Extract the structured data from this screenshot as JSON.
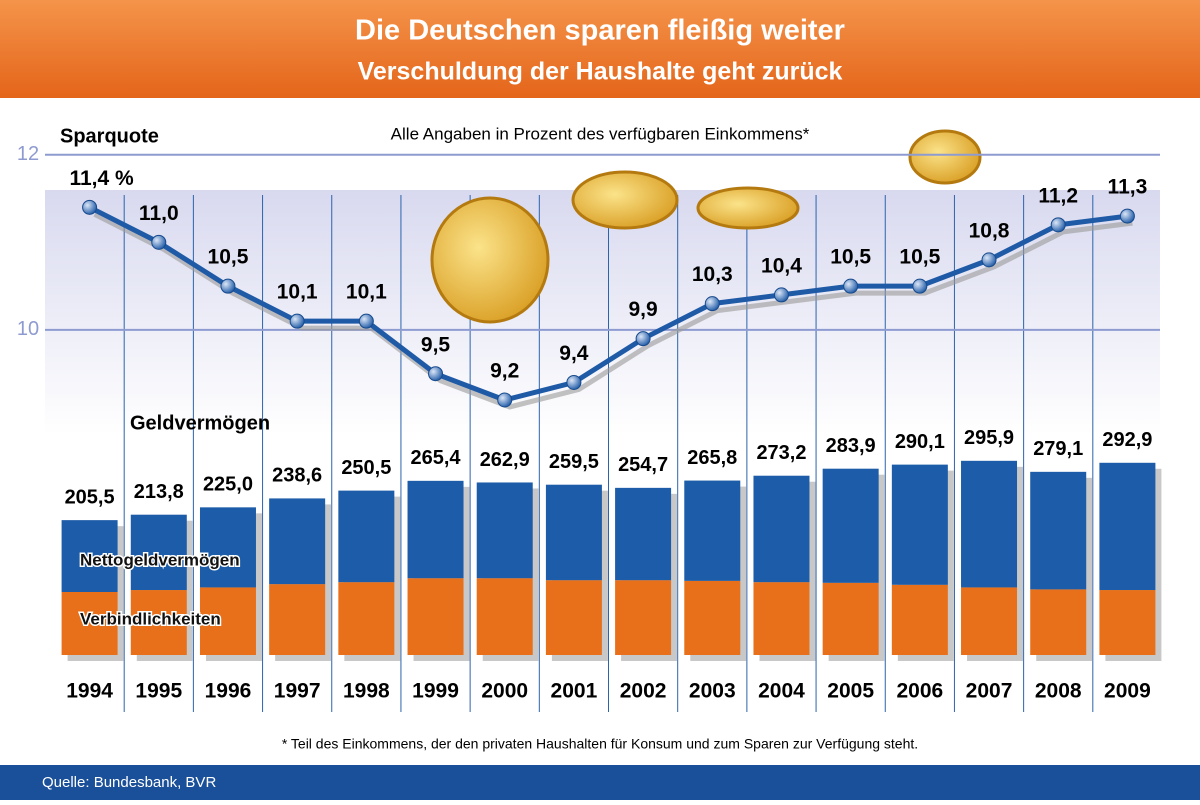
{
  "chart_data": [
    {
      "type": "line",
      "title": "Die Deutschen sparen fleißig weiter",
      "subtitle": "Verschuldung der Haushalte geht zurück",
      "note": "Alle Angaben in Prozent des verfügbaren Einkommens*",
      "ylabel": "Sparquote",
      "categories": [
        "1994",
        "1995",
        "1996",
        "1997",
        "1998",
        "1999",
        "2000",
        "2001",
        "2002",
        "2003",
        "2004",
        "2005",
        "2006",
        "2007",
        "2008",
        "2009"
      ],
      "values": [
        11.4,
        11.0,
        10.5,
        10.1,
        10.1,
        9.5,
        9.2,
        9.4,
        9.9,
        10.3,
        10.4,
        10.5,
        10.5,
        10.8,
        11.2,
        11.3
      ],
      "value_labels": [
        "11,4 %",
        "11,0",
        "10,5",
        "10,1",
        "10,1",
        "9,5",
        "9,2",
        "9,4",
        "9,9",
        "10,3",
        "10,4",
        "10,5",
        "10,5",
        "10,8",
        "11,2",
        "11,3"
      ],
      "color": "#1f5aa6",
      "ylim": [
        9,
        12.5
      ],
      "yticks": [
        10,
        12
      ],
      "grid": true
    },
    {
      "type": "bar",
      "title": "Geldvermögen",
      "categories": [
        "1994",
        "1995",
        "1996",
        "1997",
        "1998",
        "1999",
        "2000",
        "2001",
        "2002",
        "2003",
        "2004",
        "2005",
        "2006",
        "2007",
        "2008",
        "2009"
      ],
      "series": [
        {
          "name": "Verbindlichkeiten",
          "color": "#e8701a",
          "values": [
            96,
            99,
            103,
            108,
            111,
            117,
            117,
            114,
            114,
            113,
            111,
            110,
            107,
            103,
            100,
            99
          ]
        },
        {
          "name": "Nettogeldvermögen",
          "color": "#1c5ca8",
          "values": [
            109.5,
            114.8,
            122.0,
            130.6,
            139.5,
            148.4,
            145.9,
            145.5,
            140.7,
            152.8,
            162.2,
            173.9,
            183.1,
            192.9,
            179.1,
            193.9
          ]
        }
      ],
      "totals": [
        205.5,
        213.8,
        225.0,
        238.6,
        250.5,
        265.4,
        262.9,
        259.5,
        254.7,
        265.8,
        273.2,
        283.9,
        290.1,
        295.9,
        279.1,
        292.9
      ],
      "total_labels": [
        "205,5",
        "213,8",
        "225,0",
        "238,6",
        "250,5",
        "265,4",
        "262,9",
        "259,5",
        "254,7",
        "265,8",
        "273,2",
        "283,9",
        "290,1",
        "295,9",
        "279,1",
        "292,9"
      ],
      "ylim": [
        0,
        320
      ]
    }
  ],
  "footnote": "* Teil des Einkommens, der den privaten Haushalten für Konsum und zum Sparen zur Verfügung steht.",
  "source": "Quelle: Bundesbank, BVR"
}
